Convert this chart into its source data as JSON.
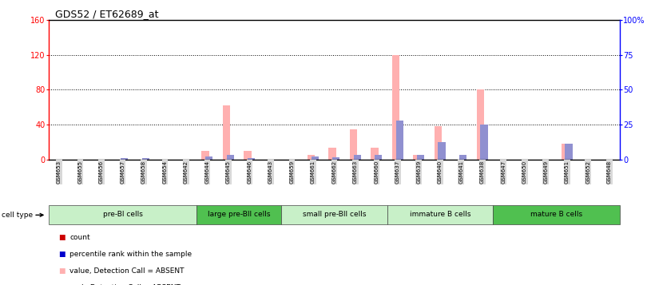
{
  "title": "GDS52 / ET62689_at",
  "samples": [
    "GSM653",
    "GSM655",
    "GSM656",
    "GSM657",
    "GSM658",
    "GSM654",
    "GSM642",
    "GSM644",
    "GSM645",
    "GSM646",
    "GSM643",
    "GSM659",
    "GSM661",
    "GSM662",
    "GSM663",
    "GSM660",
    "GSM637",
    "GSM639",
    "GSM640",
    "GSM641",
    "GSM638",
    "GSM647",
    "GSM650",
    "GSM649",
    "GSM651",
    "GSM652",
    "GSM648"
  ],
  "pink_values": [
    0,
    0,
    0,
    0,
    0,
    0,
    0,
    10,
    62,
    10,
    0,
    0,
    5,
    14,
    35,
    14,
    120,
    5,
    38,
    0,
    80,
    0,
    0,
    0,
    18,
    0,
    0
  ],
  "blue_values": [
    0,
    0,
    0,
    2,
    2,
    0,
    0,
    4,
    5,
    2,
    0,
    0,
    4,
    3,
    5,
    5,
    45,
    5,
    20,
    5,
    40,
    0,
    0,
    0,
    18,
    0,
    0
  ],
  "ylim_left": [
    0,
    160
  ],
  "ylim_right": [
    0,
    100
  ],
  "yticks_left": [
    0,
    40,
    80,
    120,
    160
  ],
  "ytick_labels_left": [
    "0",
    "40",
    "80",
    "120",
    "160"
  ],
  "yticks_right": [
    0,
    25,
    50,
    75,
    100
  ],
  "ytick_labels_right": [
    "0",
    "25",
    "50",
    "75",
    "100%"
  ],
  "groups": [
    {
      "label": "pre-BI cells",
      "start": 0,
      "end": 7,
      "color": "#c8f0c8"
    },
    {
      "label": "large pre-BII cells",
      "start": 7,
      "end": 11,
      "color": "#50c050"
    },
    {
      "label": "small pre-BII cells",
      "start": 11,
      "end": 16,
      "color": "#c8f0c8"
    },
    {
      "label": "immature B cells",
      "start": 16,
      "end": 21,
      "color": "#c8f0c8"
    },
    {
      "label": "mature B cells",
      "start": 21,
      "end": 27,
      "color": "#50c050"
    }
  ],
  "pink_color": "#ffb0b0",
  "blue_color": "#9090d0",
  "cell_type_label": "cell type",
  "legend_items": [
    {
      "label": "count",
      "color": "#cc0000"
    },
    {
      "label": "percentile rank within the sample",
      "color": "#0000cc"
    },
    {
      "label": "value, Detection Call = ABSENT",
      "color": "#ffb0b0"
    },
    {
      "label": "rank, Detection Call = ABSENT",
      "color": "#9090d0"
    }
  ],
  "xticklabel_bgcolor": "#d8d8d8"
}
